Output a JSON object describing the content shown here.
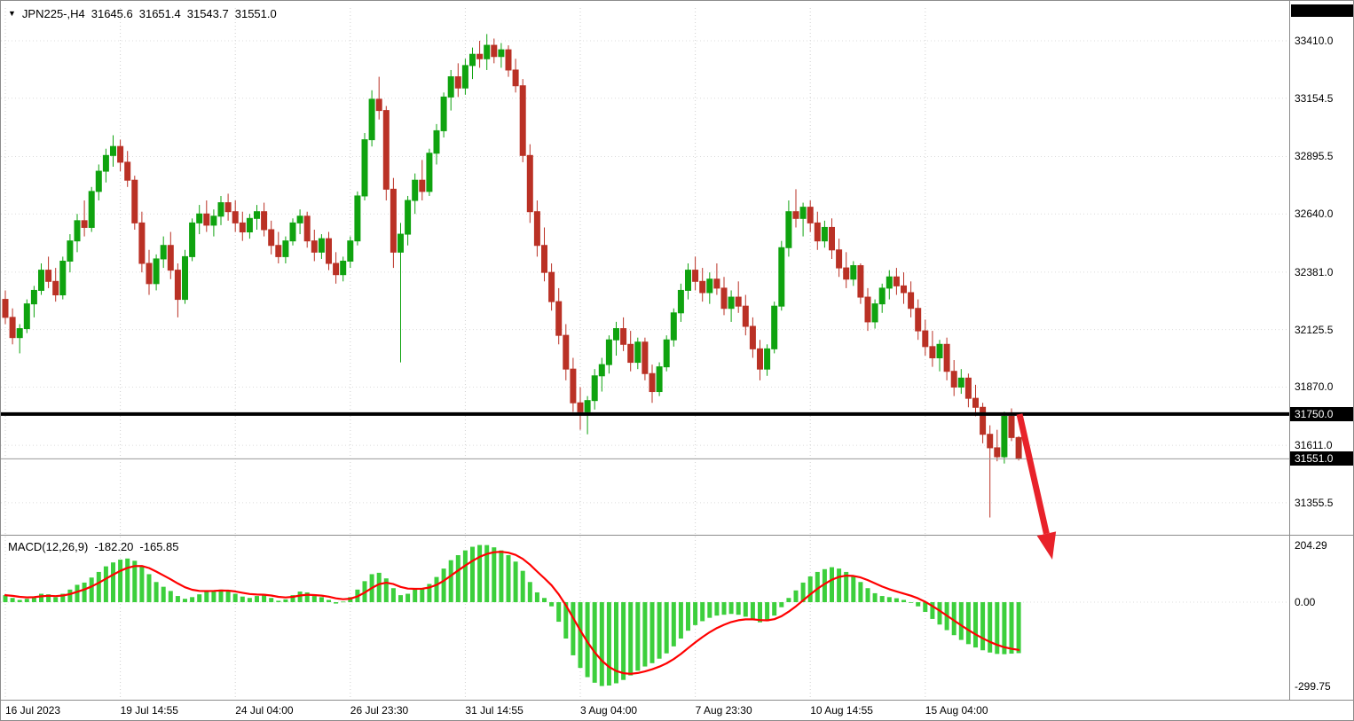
{
  "header": {
    "symbol_period": "JPN225-,H4",
    "open": "31645.6",
    "high": "31651.4",
    "low": "31543.7",
    "close": "31551.0"
  },
  "macd": {
    "name": "MACD(12,26,9)",
    "macd_value_text": "-182.20",
    "signal_value_text": "-165.85"
  },
  "levels": {
    "resistance": {
      "value": 31750.0,
      "label": "31750.0"
    },
    "current": {
      "value": 31551.0,
      "label": "31551.0"
    }
  },
  "colors": {
    "bull": "#0FA30F",
    "bear": "#BA3125",
    "macd_hist": "#3CCF3C",
    "macd_signal": "#FF0000",
    "arrow": "#E8222A",
    "level_line": "#000000",
    "grid": "#CFCFCF",
    "grid_h": "#DCDCDC",
    "current_price_line": "#999999",
    "separator": "#8C8C8C",
    "badge_bg": "#000000",
    "badge_text": "#FFFFFF"
  },
  "chart_data": [
    {
      "type": "candlestick",
      "title": "JPN225-,H4",
      "ylabel": "price",
      "ylim": [
        31290,
        33440
      ],
      "grid": true,
      "level_line": 31750.0,
      "current_price": 31551.0,
      "y_ticks": [
        {
          "value": 33410.0,
          "label": "33410.0"
        },
        {
          "value": 33154.5,
          "label": "33154.5"
        },
        {
          "value": 32895.5,
          "label": "32895.5"
        },
        {
          "value": 32640.0,
          "label": "32640.0"
        },
        {
          "value": 32381.0,
          "label": "32381.0"
        },
        {
          "value": 32125.5,
          "label": "32125.5"
        },
        {
          "value": 31870.0,
          "label": "31870.0"
        },
        {
          "value": 31611.0,
          "label": "31611.0"
        },
        {
          "value": 31355.5,
          "label": "31355.5"
        }
      ],
      "x_labels": [
        {
          "text": "16 Jul 2023",
          "index": 0
        },
        {
          "text": "19 Jul 14:55",
          "index": 16
        },
        {
          "text": "24 Jul 04:00",
          "index": 32
        },
        {
          "text": "26 Jul 23:30",
          "index": 48
        },
        {
          "text": "31 Jul 14:55",
          "index": 64
        },
        {
          "text": "3 Aug 04:00",
          "index": 80
        },
        {
          "text": "7 Aug 23:30",
          "index": 96
        },
        {
          "text": "10 Aug 14:55",
          "index": 112
        },
        {
          "text": "15 Aug 04:00",
          "index": 128
        }
      ],
      "annotations": [
        {
          "type": "arrow",
          "color": "#E8222A",
          "from": [
            1148,
            466
          ],
          "to": [
            1185,
            630
          ]
        }
      ],
      "candles": [
        [
          32260,
          32300,
          32150,
          32180
        ],
        [
          32180,
          32220,
          32060,
          32090
        ],
        [
          32090,
          32150,
          32020,
          32130
        ],
        [
          32130,
          32260,
          32110,
          32240
        ],
        [
          32240,
          32320,
          32180,
          32300
        ],
        [
          32300,
          32420,
          32280,
          32390
        ],
        [
          32390,
          32450,
          32310,
          32340
        ],
        [
          32340,
          32400,
          32250,
          32280
        ],
        [
          32280,
          32450,
          32260,
          32430
        ],
        [
          32430,
          32550,
          32380,
          32520
        ],
        [
          32520,
          32640,
          32470,
          32610
        ],
        [
          32610,
          32700,
          32540,
          32580
        ],
        [
          32580,
          32760,
          32560,
          32740
        ],
        [
          32740,
          32860,
          32700,
          32830
        ],
        [
          32830,
          32930,
          32780,
          32900
        ],
        [
          32900,
          32990,
          32850,
          32940
        ],
        [
          32940,
          32970,
          32830,
          32870
        ],
        [
          32870,
          32920,
          32760,
          32790
        ],
        [
          32790,
          32810,
          32570,
          32600
        ],
        [
          32600,
          32650,
          32380,
          32420
        ],
        [
          32420,
          32480,
          32280,
          32330
        ],
        [
          32330,
          32460,
          32300,
          32440
        ],
        [
          32440,
          32540,
          32400,
          32500
        ],
        [
          32500,
          32560,
          32350,
          32390
        ],
        [
          32390,
          32420,
          32180,
          32260
        ],
        [
          32260,
          32480,
          32240,
          32450
        ],
        [
          32450,
          32620,
          32430,
          32600
        ],
        [
          32600,
          32680,
          32550,
          32640
        ],
        [
          32640,
          32700,
          32560,
          32590
        ],
        [
          32590,
          32660,
          32540,
          32630
        ],
        [
          32630,
          32720,
          32590,
          32690
        ],
        [
          32690,
          32730,
          32610,
          32650
        ],
        [
          32650,
          32700,
          32560,
          32600
        ],
        [
          32600,
          32650,
          32520,
          32560
        ],
        [
          32560,
          32640,
          32530,
          32620
        ],
        [
          32620,
          32680,
          32570,
          32650
        ],
        [
          32650,
          32690,
          32540,
          32570
        ],
        [
          32570,
          32610,
          32460,
          32500
        ],
        [
          32500,
          32560,
          32420,
          32450
        ],
        [
          32450,
          32540,
          32420,
          32520
        ],
        [
          32520,
          32620,
          32500,
          32600
        ],
        [
          32600,
          32660,
          32550,
          32630
        ],
        [
          32630,
          32650,
          32490,
          32520
        ],
        [
          32520,
          32570,
          32430,
          32470
        ],
        [
          32470,
          32550,
          32440,
          32530
        ],
        [
          32530,
          32560,
          32390,
          32420
        ],
        [
          32420,
          32470,
          32330,
          32370
        ],
        [
          32370,
          32450,
          32340,
          32430
        ],
        [
          32430,
          32540,
          32400,
          32520
        ],
        [
          32520,
          32740,
          32500,
          32720
        ],
        [
          32720,
          33000,
          32700,
          32970
        ],
        [
          32970,
          33190,
          32940,
          33150
        ],
        [
          33150,
          33250,
          33060,
          33100
        ],
        [
          33100,
          33120,
          32700,
          32750
        ],
        [
          32750,
          32800,
          32400,
          32470
        ],
        [
          32470,
          32600,
          31980,
          32550
        ],
        [
          32550,
          32720,
          32500,
          32700
        ],
        [
          32700,
          32820,
          32640,
          32790
        ],
        [
          32790,
          32880,
          32700,
          32740
        ],
        [
          32740,
          32930,
          32720,
          32910
        ],
        [
          32910,
          33040,
          32860,
          33010
        ],
        [
          33010,
          33180,
          32980,
          33160
        ],
        [
          33160,
          33280,
          33100,
          33250
        ],
        [
          33250,
          33310,
          33160,
          33200
        ],
        [
          33200,
          33330,
          33170,
          33300
        ],
        [
          33300,
          33380,
          33240,
          33350
        ],
        [
          33350,
          33410,
          33290,
          33330
        ],
        [
          33330,
          33440,
          33280,
          33390
        ],
        [
          33390,
          33420,
          33310,
          33340
        ],
        [
          33340,
          33400,
          33290,
          33370
        ],
        [
          33370,
          33390,
          33250,
          33280
        ],
        [
          33280,
          33330,
          33180,
          33210
        ],
        [
          33210,
          33240,
          32870,
          32900
        ],
        [
          32900,
          32950,
          32600,
          32650
        ],
        [
          32650,
          32700,
          32450,
          32500
        ],
        [
          32500,
          32580,
          32340,
          32380
        ],
        [
          32380,
          32420,
          32210,
          32250
        ],
        [
          32250,
          32310,
          32060,
          32100
        ],
        [
          32100,
          32150,
          31900,
          31950
        ],
        [
          31950,
          32000,
          31760,
          31800
        ],
        [
          31800,
          31870,
          31680,
          31760
        ],
        [
          31760,
          31830,
          31660,
          31810
        ],
        [
          31810,
          31950,
          31770,
          31920
        ],
        [
          31920,
          32000,
          31850,
          31970
        ],
        [
          31970,
          32100,
          31930,
          32080
        ],
        [
          32080,
          32160,
          32010,
          32130
        ],
        [
          32130,
          32180,
          32030,
          32060
        ],
        [
          32060,
          32120,
          31940,
          31980
        ],
        [
          31980,
          32090,
          31950,
          32070
        ],
        [
          32070,
          32090,
          31900,
          31930
        ],
        [
          31930,
          31970,
          31800,
          31850
        ],
        [
          31850,
          31980,
          31830,
          31960
        ],
        [
          31960,
          32100,
          31940,
          32080
        ],
        [
          32080,
          32220,
          32050,
          32200
        ],
        [
          32200,
          32330,
          32160,
          32300
        ],
        [
          32300,
          32420,
          32260,
          32390
        ],
        [
          32390,
          32450,
          32300,
          32340
        ],
        [
          32340,
          32400,
          32250,
          32290
        ],
        [
          32290,
          32380,
          32240,
          32350
        ],
        [
          32350,
          32420,
          32280,
          32310
        ],
        [
          32310,
          32360,
          32190,
          32220
        ],
        [
          32220,
          32300,
          32160,
          32270
        ],
        [
          32270,
          32340,
          32200,
          32230
        ],
        [
          32230,
          32280,
          32100,
          32140
        ],
        [
          32140,
          32180,
          32000,
          32040
        ],
        [
          32040,
          32080,
          31900,
          31950
        ],
        [
          31950,
          32060,
          31920,
          32040
        ],
        [
          32040,
          32250,
          32020,
          32230
        ],
        [
          32230,
          32520,
          32210,
          32490
        ],
        [
          32490,
          32700,
          32450,
          32650
        ],
        [
          32650,
          32750,
          32580,
          32620
        ],
        [
          32620,
          32690,
          32540,
          32670
        ],
        [
          32670,
          32700,
          32560,
          32600
        ],
        [
          32600,
          32650,
          32480,
          32520
        ],
        [
          32520,
          32610,
          32490,
          32580
        ],
        [
          32580,
          32620,
          32440,
          32480
        ],
        [
          32480,
          32530,
          32360,
          32400
        ],
        [
          32400,
          32470,
          32310,
          32350
        ],
        [
          32350,
          32430,
          32320,
          32410
        ],
        [
          32410,
          32420,
          32240,
          32270
        ],
        [
          32270,
          32310,
          32120,
          32160
        ],
        [
          32160,
          32260,
          32130,
          32240
        ],
        [
          32240,
          32330,
          32200,
          32310
        ],
        [
          32310,
          32390,
          32260,
          32360
        ],
        [
          32360,
          32400,
          32280,
          32320
        ],
        [
          32320,
          32380,
          32240,
          32290
        ],
        [
          32290,
          32340,
          32180,
          32220
        ],
        [
          32220,
          32260,
          32080,
          32120
        ],
        [
          32120,
          32170,
          32010,
          32050
        ],
        [
          32050,
          32120,
          31960,
          32000
        ],
        [
          32000,
          32080,
          31940,
          32060
        ],
        [
          32060,
          32090,
          31900,
          31940
        ],
        [
          31940,
          31990,
          31830,
          31870
        ],
        [
          31870,
          31950,
          31840,
          31910
        ],
        [
          31910,
          31930,
          31780,
          31820
        ],
        [
          31820,
          31880,
          31740,
          31780
        ],
        [
          31780,
          31800,
          31620,
          31660
        ],
        [
          31660,
          31700,
          31290,
          31600
        ],
        [
          31600,
          31680,
          31540,
          31560
        ],
        [
          31560,
          31760,
          31530,
          31740
        ],
        [
          31740,
          31775,
          31630,
          31645.6
        ],
        [
          31645.6,
          31651.4,
          31543.7,
          31551
        ]
      ]
    },
    {
      "type": "bar",
      "name": "MACD(12,26,9)",
      "macd_value": -182.2,
      "signal_value": -165.85,
      "signal_ema_alpha": 0.25,
      "ylim": [
        -299.75,
        204.29
      ],
      "y_ticks": [
        {
          "value": 204.29,
          "label": "204.29"
        },
        {
          "value": 0,
          "label": "0.00"
        },
        {
          "value": -299.75,
          "label": "-299.75"
        }
      ],
      "values": [
        25,
        15,
        8,
        12,
        20,
        30,
        28,
        18,
        30,
        45,
        62,
        70,
        88,
        108,
        128,
        142,
        152,
        156,
        148,
        130,
        100,
        72,
        55,
        40,
        22,
        12,
        18,
        28,
        38,
        42,
        45,
        40,
        30,
        20,
        15,
        22,
        25,
        15,
        5,
        10,
        25,
        38,
        35,
        22,
        18,
        8,
        -5,
        2,
        18,
        45,
        75,
        100,
        105,
        85,
        50,
        25,
        30,
        45,
        50,
        65,
        90,
        120,
        150,
        168,
        185,
        198,
        204.29,
        204,
        196,
        185,
        168,
        145,
        112,
        72,
        35,
        15,
        -15,
        -70,
        -130,
        -190,
        -235,
        -268,
        -288,
        -299.75,
        -298,
        -290,
        -278,
        -262,
        -245,
        -230,
        -218,
        -202,
        -183,
        -158,
        -130,
        -102,
        -82,
        -68,
        -56,
        -48,
        -45,
        -42,
        -45,
        -52,
        -62,
        -72,
        -68,
        -48,
        -18,
        15,
        42,
        70,
        92,
        108,
        118,
        125,
        120,
        108,
        92,
        72,
        50,
        32,
        22,
        18,
        14,
        8,
        0,
        -15,
        -35,
        -60,
        -80,
        -100,
        -118,
        -135,
        -150,
        -162,
        -172,
        -180,
        -185,
        -186,
        -184,
        -182.2
      ]
    }
  ]
}
